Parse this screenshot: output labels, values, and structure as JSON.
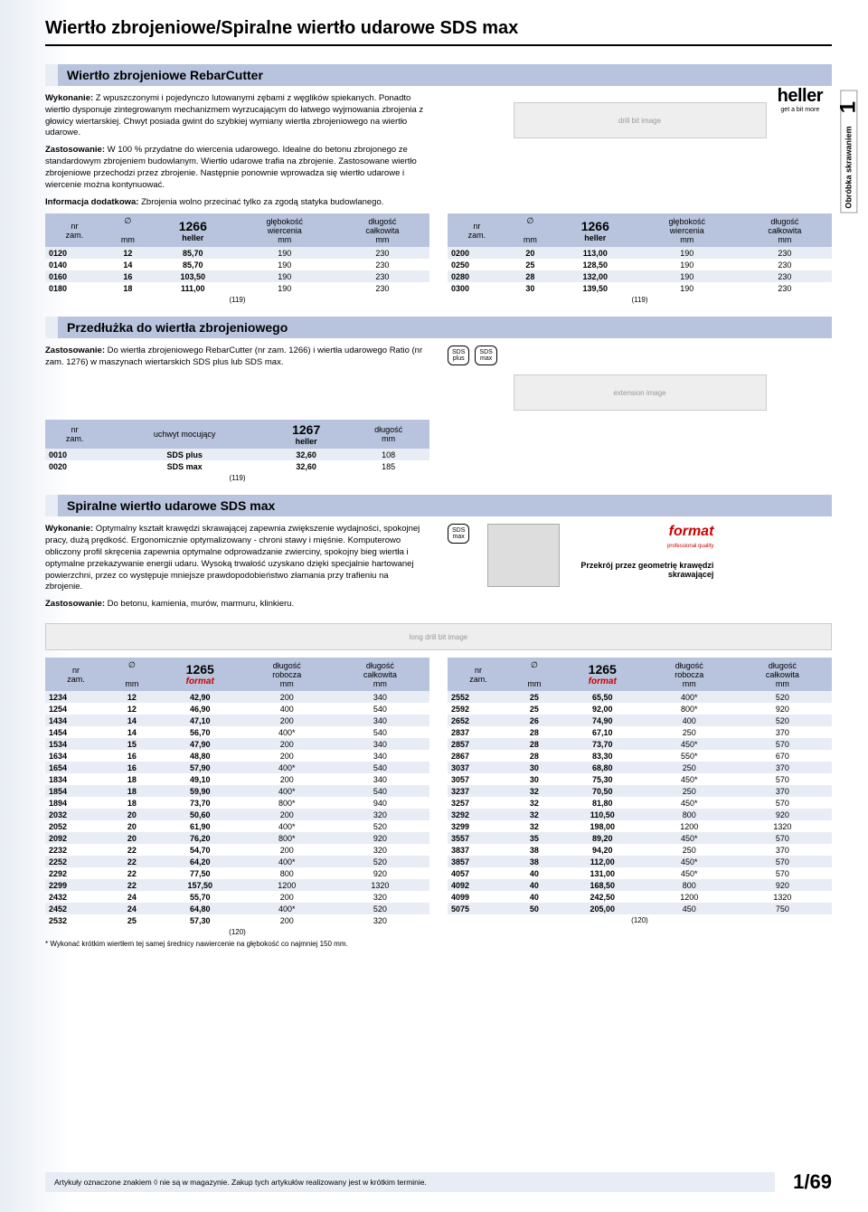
{
  "page_title": "Wiertło zbrojeniowe/Spiralne wiertło udarowe SDS max",
  "side_tab": {
    "num": "1",
    "text": "Obróbka skrawaniem"
  },
  "brand": {
    "name": "heller",
    "tag": "get a bit more"
  },
  "sec1": {
    "title": "Wiertło zbrojeniowe RebarCutter",
    "p1_label": "Wykonanie:",
    "p1": " Z wpuszczonymi i pojedynczo lutowanymi zębami z węglików spiekanych. Ponadto wiertło dysponuje zintegrowanym mechanizmem wyrzucającym do łatwego wyjmowania zbrojenia z głowicy wiertarskiej. Chwyt posiada gwint do szybkiej wymiany wiertła zbrojeniowego na wiertło udarowe.",
    "p2_label": "Zastosowanie:",
    "p2": " W 100 % przydatne do wiercenia udarowego. Idealne do betonu zbrojonego ze standardowym zbrojeniem budowlanym. Wiertło udarowe trafia na zbrojenie. Zastosowane wiertło zbrojeniowe przechodzi przez zbrojenie. Następnie ponownie wprowadza się wiertło udarowe i wiercenie można kontynuować.",
    "p3_label": "Informacja dodatkowa:",
    "p3": " Zbrojenia wolno przecinać tylko za zgodą statyka budowlanego.",
    "headers": {
      "nr": "nr\nzam.",
      "dia": "∅",
      "dia_u": "mm",
      "brand_num": "1266",
      "brand": "heller",
      "depth": "głębokość\nwiercenia",
      "depth_u": "mm",
      "total": "długość\ncałkowita",
      "total_u": "mm"
    },
    "left_rows": [
      {
        "nr": "0120",
        "d": "12",
        "p": "85,70",
        "g": "190",
        "c": "230"
      },
      {
        "nr": "0140",
        "d": "14",
        "p": "85,70",
        "g": "190",
        "c": "230"
      },
      {
        "nr": "0160",
        "d": "16",
        "p": "103,50",
        "g": "190",
        "c": "230"
      },
      {
        "nr": "0180",
        "d": "18",
        "p": "111,00",
        "g": "190",
        "c": "230"
      }
    ],
    "right_rows": [
      {
        "nr": "0200",
        "d": "20",
        "p": "113,00",
        "g": "190",
        "c": "230"
      },
      {
        "nr": "0250",
        "d": "25",
        "p": "128,50",
        "g": "190",
        "c": "230"
      },
      {
        "nr": "0280",
        "d": "28",
        "p": "132,00",
        "g": "190",
        "c": "230"
      },
      {
        "nr": "0300",
        "d": "30",
        "p": "139,50",
        "g": "190",
        "c": "230"
      }
    ],
    "footnote": "(119)"
  },
  "sec2": {
    "title": "Przedłużka do wiertła zbrojeniowego",
    "p1_label": "Zastosowanie:",
    "p1": " Do wiertła zbrojeniowego RebarCutter (nr zam. 1266) i wiertła udarowego Ratio (nr zam. 1276) w maszynach wiertarskich SDS plus lub SDS max.",
    "headers": {
      "nr": "nr\nzam.",
      "grip": "uchwyt mocujący",
      "brand_num": "1267",
      "brand": "heller",
      "len": "długość",
      "len_u": "mm"
    },
    "rows": [
      {
        "nr": "0010",
        "g": "SDS plus",
        "p": "32,60",
        "l": "108"
      },
      {
        "nr": "0020",
        "g": "SDS max",
        "p": "32,60",
        "l": "185"
      }
    ],
    "footnote": "(119)",
    "icons": [
      "SDS\nplus",
      "SDS\nmax"
    ]
  },
  "sec3": {
    "title": "Spiralne wiertło udarowe SDS max",
    "p1_label": "Wykonanie:",
    "p1": " Optymalny kształt krawędzi skrawającej zapewnia zwiększenie wydajności, spokojnej pracy, dużą prędkość. Ergonomicznie optymalizowany - chroni stawy i mięśnie. Komputerowo obliczony profil skręcenia zapewnia optymalne odprowadzanie zwierciny, spokojny bieg wiertła i optymalne przekazywanie energii udaru. Wysoką trwałość uzyskano dzięki specjalnie hartowanej powierzchni, przez co występuje mniejsze prawdopodobieństwo złamania przy trafieniu na zbrojenie.",
    "p2_label": "Zastosowanie:",
    "p2": " Do betonu, kamienia, murów, marmuru, klinkieru.",
    "cross_label": "Przekrój przez geometrię krawędzi skrawającej",
    "format": {
      "name": "format",
      "sub": "professional quality"
    },
    "icons": [
      "SDS\nmax"
    ],
    "headers": {
      "nr": "nr\nzam.",
      "dia": "∅",
      "dia_u": "mm",
      "brand_num": "1265",
      "brand": "format",
      "work": "długość\nrobocza",
      "work_u": "mm",
      "total": "długość\ncałkowita",
      "total_u": "mm"
    },
    "left_rows": [
      {
        "nr": "1234",
        "d": "12",
        "p": "42,90",
        "r": "200",
        "c": "340"
      },
      {
        "nr": "1254",
        "d": "12",
        "p": "46,90",
        "r": "400",
        "c": "540"
      },
      {
        "nr": "1434",
        "d": "14",
        "p": "47,10",
        "r": "200",
        "c": "340"
      },
      {
        "nr": "1454",
        "d": "14",
        "p": "56,70",
        "r": "400*",
        "c": "540"
      },
      {
        "nr": "1534",
        "d": "15",
        "p": "47,90",
        "r": "200",
        "c": "340"
      },
      {
        "nr": "1634",
        "d": "16",
        "p": "48,80",
        "r": "200",
        "c": "340"
      },
      {
        "nr": "1654",
        "d": "16",
        "p": "57,90",
        "r": "400*",
        "c": "540"
      },
      {
        "nr": "1834",
        "d": "18",
        "p": "49,10",
        "r": "200",
        "c": "340"
      },
      {
        "nr": "1854",
        "d": "18",
        "p": "59,90",
        "r": "400*",
        "c": "540"
      },
      {
        "nr": "1894",
        "d": "18",
        "p": "73,70",
        "r": "800*",
        "c": "940"
      },
      {
        "nr": "2032",
        "d": "20",
        "p": "50,60",
        "r": "200",
        "c": "320"
      },
      {
        "nr": "2052",
        "d": "20",
        "p": "61,90",
        "r": "400*",
        "c": "520"
      },
      {
        "nr": "2092",
        "d": "20",
        "p": "76,20",
        "r": "800*",
        "c": "920"
      },
      {
        "nr": "2232",
        "d": "22",
        "p": "54,70",
        "r": "200",
        "c": "320"
      },
      {
        "nr": "2252",
        "d": "22",
        "p": "64,20",
        "r": "400*",
        "c": "520"
      },
      {
        "nr": "2292",
        "d": "22",
        "p": "77,50",
        "r": "800",
        "c": "920"
      },
      {
        "nr": "2299",
        "d": "22",
        "p": "157,50",
        "r": "1200",
        "c": "1320"
      },
      {
        "nr": "2432",
        "d": "24",
        "p": "55,70",
        "r": "200",
        "c": "320"
      },
      {
        "nr": "2452",
        "d": "24",
        "p": "64,80",
        "r": "400*",
        "c": "520"
      },
      {
        "nr": "2532",
        "d": "25",
        "p": "57,30",
        "r": "200",
        "c": "320"
      }
    ],
    "right_rows": [
      {
        "nr": "2552",
        "d": "25",
        "p": "65,50",
        "r": "400*",
        "c": "520"
      },
      {
        "nr": "2592",
        "d": "25",
        "p": "92,00",
        "r": "800*",
        "c": "920"
      },
      {
        "nr": "2652",
        "d": "26",
        "p": "74,90",
        "r": "400",
        "c": "520"
      },
      {
        "nr": "2837",
        "d": "28",
        "p": "67,10",
        "r": "250",
        "c": "370"
      },
      {
        "nr": "2857",
        "d": "28",
        "p": "73,70",
        "r": "450*",
        "c": "570"
      },
      {
        "nr": "2867",
        "d": "28",
        "p": "83,30",
        "r": "550*",
        "c": "670"
      },
      {
        "nr": "3037",
        "d": "30",
        "p": "68,80",
        "r": "250",
        "c": "370"
      },
      {
        "nr": "3057",
        "d": "30",
        "p": "75,30",
        "r": "450*",
        "c": "570"
      },
      {
        "nr": "3237",
        "d": "32",
        "p": "70,50",
        "r": "250",
        "c": "370"
      },
      {
        "nr": "3257",
        "d": "32",
        "p": "81,80",
        "r": "450*",
        "c": "570"
      },
      {
        "nr": "3292",
        "d": "32",
        "p": "110,50",
        "r": "800",
        "c": "920"
      },
      {
        "nr": "3299",
        "d": "32",
        "p": "198,00",
        "r": "1200",
        "c": "1320"
      },
      {
        "nr": "3557",
        "d": "35",
        "p": "89,20",
        "r": "450*",
        "c": "570"
      },
      {
        "nr": "3837",
        "d": "38",
        "p": "94,20",
        "r": "250",
        "c": "370"
      },
      {
        "nr": "3857",
        "d": "38",
        "p": "112,00",
        "r": "450*",
        "c": "570"
      },
      {
        "nr": "4057",
        "d": "40",
        "p": "131,00",
        "r": "450*",
        "c": "570"
      },
      {
        "nr": "4092",
        "d": "40",
        "p": "168,50",
        "r": "800",
        "c": "920"
      },
      {
        "nr": "4099",
        "d": "40",
        "p": "242,50",
        "r": "1200",
        "c": "1320"
      },
      {
        "nr": "5075",
        "d": "50",
        "p": "205,00",
        "r": "450",
        "c": "750"
      }
    ],
    "footnote_l": "(120)",
    "footnote_r": "(120)",
    "asterisk": "* Wykonać krótkim wiertłem tej samej średnicy nawiercenie na głębokość co najmniej 150 mm."
  },
  "footer": {
    "note": "Artykuły oznaczone znakiem ◊ nie są w magazynie. Zakup tych artykułów realizowany jest w krótkim terminie.",
    "page": "1/69"
  }
}
